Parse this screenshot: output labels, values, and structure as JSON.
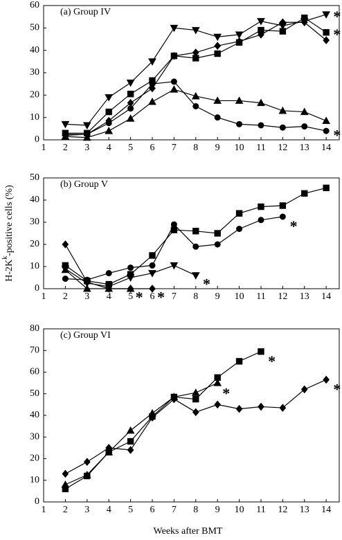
{
  "chart_data": [
    {
      "type": "line",
      "title": "(a) Group IV",
      "xlim": [
        1,
        14.6
      ],
      "xticks": [
        1,
        2,
        3,
        4,
        5,
        6,
        7,
        8,
        9,
        10,
        11,
        12,
        13,
        14
      ],
      "ylim": [
        0,
        60
      ],
      "yticks": [
        0,
        10,
        20,
        30,
        40,
        50,
        60
      ],
      "color": "#000000",
      "series": [
        {
          "marker": "down-triangle",
          "x": [
            2,
            3,
            4,
            5,
            6,
            7,
            8,
            9,
            10,
            11,
            12,
            13,
            14
          ],
          "values": [
            7,
            6.5,
            19,
            25.5,
            35,
            50,
            49,
            46,
            47,
            53,
            51,
            53,
            56
          ]
        },
        {
          "marker": "square",
          "x": [
            2,
            3,
            4,
            5,
            6,
            7,
            8,
            9,
            10,
            11,
            12,
            13,
            14
          ],
          "values": [
            3,
            3,
            12.5,
            20.5,
            26.5,
            37.5,
            36.5,
            38.5,
            43.5,
            49,
            48.5,
            54.5,
            48
          ]
        },
        {
          "marker": "diamond",
          "x": [
            2,
            3,
            4,
            5,
            6,
            7,
            8,
            9,
            10,
            11,
            12,
            13,
            14
          ],
          "values": [
            2,
            2.5,
            8.5,
            16.5,
            23,
            37.5,
            39,
            42,
            44,
            47,
            52.5,
            52.5,
            44.5
          ]
        },
        {
          "marker": "triangle",
          "x": [
            2,
            3,
            4,
            5,
            6,
            7,
            8,
            9,
            10,
            11,
            12,
            13,
            14
          ],
          "values": [
            1.5,
            1,
            4,
            9.5,
            17,
            22.5,
            19.5,
            17.5,
            17.5,
            16.5,
            13,
            12.5,
            8.5
          ]
        },
        {
          "marker": "circle",
          "x": [
            2,
            3,
            4,
            5,
            6,
            7,
            8,
            9,
            10,
            11,
            12,
            13,
            14
          ],
          "values": [
            2.5,
            2.5,
            7.5,
            14,
            25,
            26,
            15,
            10,
            7,
            6.5,
            5.5,
            6,
            4
          ]
        }
      ],
      "annotations": [
        {
          "text": "*",
          "x": 14.5,
          "y": 56
        },
        {
          "text": "*",
          "x": 14.5,
          "y": 48
        },
        {
          "text": "*",
          "x": 14.5,
          "y": 3
        }
      ]
    },
    {
      "type": "line",
      "title": "(b) Group V",
      "xlim": [
        1,
        14.6
      ],
      "xticks": [
        1,
        2,
        3,
        4,
        5,
        6,
        7,
        8,
        9,
        10,
        11,
        12,
        13,
        14
      ],
      "ylim": [
        0,
        50
      ],
      "yticks": [
        0,
        10,
        20,
        30,
        40,
        50
      ],
      "color": "#000000",
      "ylabel": [
        "H-2K",
        "k",
        "-positive cells (%)"
      ],
      "series": [
        {
          "marker": "square",
          "x": [
            2,
            3,
            4,
            5,
            6,
            7,
            8,
            9,
            10,
            11,
            12,
            13,
            14
          ],
          "values": [
            10.5,
            3.5,
            2,
            6.5,
            15,
            26.5,
            26,
            25,
            34,
            37,
            37.5,
            43,
            45.5
          ]
        },
        {
          "marker": "circle",
          "x": [
            2,
            3,
            4,
            5,
            6,
            7,
            8,
            9,
            10,
            11,
            12
          ],
          "values": [
            4.5,
            4,
            7,
            9.5,
            10.5,
            29,
            19,
            20,
            27,
            31,
            32.5
          ]
        },
        {
          "marker": "down-triangle",
          "x": [
            2,
            3,
            4,
            5,
            6,
            7,
            8
          ],
          "values": [
            9,
            2.5,
            1,
            5,
            7,
            10.5,
            6
          ]
        },
        {
          "marker": "diamond",
          "x": [
            2,
            3,
            4,
            5,
            6
          ],
          "values": [
            20,
            3,
            0,
            0,
            0
          ]
        },
        {
          "marker": "triangle",
          "x": [
            2,
            3,
            4,
            5
          ],
          "values": [
            8.5,
            0,
            0,
            0
          ]
        }
      ],
      "annotations": [
        {
          "text": "*",
          "x": 12.5,
          "y": 29
        },
        {
          "text": "*",
          "x": 8.5,
          "y": 3
        },
        {
          "text": "*",
          "x": 6.4,
          "y": -3
        },
        {
          "text": "*",
          "x": 5.4,
          "y": -3
        }
      ]
    },
    {
      "type": "line",
      "title": "(c) Group VI",
      "xlim": [
        1,
        14.6
      ],
      "xticks": [
        1,
        2,
        3,
        4,
        5,
        6,
        7,
        8,
        9,
        10,
        11,
        12,
        13,
        14
      ],
      "ylim": [
        0,
        80
      ],
      "yticks": [
        0,
        10,
        20,
        30,
        40,
        50,
        60,
        70,
        80
      ],
      "color": "#000000",
      "xlabel": "Weeks after BMT",
      "series": [
        {
          "marker": "square",
          "x": [
            2,
            3,
            4,
            5,
            6,
            7,
            8,
            9,
            10,
            11
          ],
          "values": [
            6,
            12,
            23,
            28,
            39.5,
            48.5,
            47.5,
            57.5,
            65,
            69.5
          ]
        },
        {
          "marker": "triangle",
          "x": [
            2,
            3,
            4,
            5,
            6,
            7,
            8,
            9
          ],
          "values": [
            8,
            12.5,
            23,
            33,
            41,
            48.5,
            50.5,
            55
          ]
        },
        {
          "marker": "diamond",
          "x": [
            2,
            3,
            4,
            5,
            6,
            7,
            8,
            9,
            10,
            11,
            12,
            13,
            14
          ],
          "values": [
            13,
            18.5,
            25,
            24,
            39,
            47.5,
            41.5,
            45,
            43,
            44,
            43.5,
            52,
            56.5
          ]
        }
      ],
      "annotations": [
        {
          "text": "*",
          "x": 11.5,
          "y": 66
        },
        {
          "text": "*",
          "x": 9.4,
          "y": 51
        },
        {
          "text": "*",
          "x": 14.5,
          "y": 53
        }
      ]
    }
  ]
}
